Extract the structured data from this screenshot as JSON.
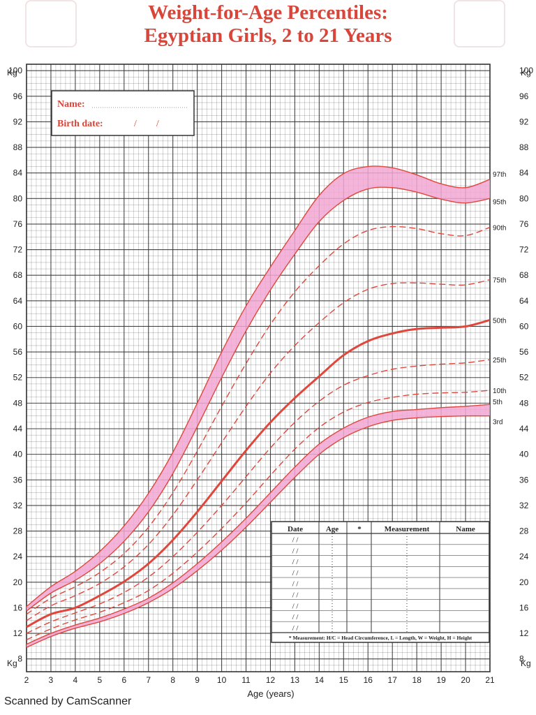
{
  "title_line1": "Weight-for-Age Percentiles:",
  "title_line2": "Egyptian Girls, 2 to 21 Years",
  "scan_note": "Scanned by CamScanner",
  "form": {
    "name_label": "Name:",
    "birth_label": "Birth date:",
    "birth_slashes": "/        /"
  },
  "record_table": {
    "headers": [
      "Date",
      "Age",
      "*",
      "Measurement",
      "Name"
    ],
    "date_mark": "/   /",
    "footnote": "* Measurement: H/C = Head Circumference, L = Length, W = Weight, H = Height"
  },
  "colors": {
    "curve": "#e0473c",
    "band": "#f2a7d4",
    "grid": "#333333",
    "text": "#222222"
  },
  "chart_data": {
    "type": "line",
    "title": "Weight-for-Age Percentiles: Egyptian Girls, 2 to 21 Years",
    "xlabel": "Age (years)",
    "ylabel": "Kg",
    "xlim": [
      2,
      21
    ],
    "ylim": [
      6,
      101
    ],
    "x_ticks": [
      2,
      3,
      4,
      5,
      6,
      7,
      8,
      9,
      10,
      11,
      12,
      13,
      14,
      15,
      16,
      17,
      18,
      19,
      20,
      21
    ],
    "y_ticks": [
      8,
      12,
      16,
      20,
      24,
      28,
      32,
      36,
      40,
      44,
      48,
      52,
      56,
      60,
      64,
      68,
      72,
      76,
      80,
      84,
      88,
      92,
      96,
      100
    ],
    "grid": true,
    "shaded_bands": [
      [
        "3rd",
        "5th"
      ],
      [
        "95th",
        "97th"
      ]
    ],
    "x": [
      2,
      3,
      4,
      5,
      6,
      7,
      8,
      9,
      10,
      11,
      12,
      13,
      14,
      15,
      16,
      17,
      18,
      19,
      20,
      21
    ],
    "series": [
      {
        "name": "3rd",
        "style": "solid",
        "values": [
          9.8,
          11.5,
          12.8,
          13.8,
          15.1,
          16.8,
          19.0,
          21.8,
          25.0,
          28.6,
          32.5,
          36.4,
          40.0,
          42.6,
          44.3,
          45.3,
          45.7,
          45.9,
          46.0,
          46.0
        ]
      },
      {
        "name": "5th",
        "style": "solid",
        "values": [
          10.3,
          12.0,
          13.3,
          14.4,
          15.8,
          17.5,
          19.9,
          22.9,
          26.3,
          30.0,
          34.0,
          38.0,
          41.6,
          44.1,
          45.8,
          46.7,
          47.0,
          47.3,
          47.5,
          47.8
        ]
      },
      {
        "name": "10th",
        "style": "dashed",
        "values": [
          11.0,
          12.7,
          14.1,
          15.3,
          16.8,
          18.7,
          21.4,
          24.7,
          28.4,
          32.4,
          36.7,
          40.8,
          44.2,
          46.6,
          48.1,
          48.9,
          49.4,
          49.6,
          49.7,
          50.0
        ]
      },
      {
        "name": "25th",
        "style": "dashed",
        "values": [
          12.0,
          13.8,
          15.2,
          16.6,
          18.4,
          20.8,
          24.0,
          27.8,
          32.0,
          36.5,
          41.0,
          45.0,
          48.3,
          50.8,
          52.3,
          53.3,
          53.8,
          54.1,
          54.3,
          54.8
        ]
      },
      {
        "name": "50th",
        "style": "solid",
        "values": [
          13.0,
          15.0,
          16.0,
          17.9,
          20.1,
          22.9,
          26.6,
          31.0,
          35.8,
          40.6,
          45.0,
          48.8,
          52.2,
          55.5,
          57.7,
          58.9,
          59.6,
          59.8,
          60.0,
          61.0
        ]
      },
      {
        "name": "75th",
        "style": "dashed",
        "values": [
          14.0,
          16.3,
          17.9,
          19.8,
          22.4,
          25.9,
          30.5,
          36.0,
          41.8,
          47.5,
          52.7,
          57.0,
          60.6,
          63.7,
          65.8,
          66.7,
          66.8,
          66.6,
          66.5,
          67.3
        ]
      },
      {
        "name": "90th",
        "style": "dashed",
        "values": [
          15.0,
          17.5,
          19.3,
          21.5,
          24.5,
          28.6,
          34.0,
          40.5,
          47.5,
          54.2,
          60.3,
          65.4,
          69.5,
          72.9,
          75.0,
          75.6,
          75.3,
          74.5,
          74.2,
          75.5
        ]
      },
      {
        "name": "95th",
        "style": "solid",
        "values": [
          15.5,
          18.3,
          20.3,
          22.9,
          26.4,
          31.0,
          37.0,
          44.3,
          52.0,
          59.3,
          65.7,
          71.3,
          76.4,
          79.7,
          81.5,
          81.7,
          81.0,
          79.9,
          79.3,
          80.0
        ]
      },
      {
        "name": "97th",
        "style": "solid",
        "values": [
          16.2,
          19.3,
          21.7,
          24.8,
          28.8,
          33.9,
          40.3,
          48.0,
          56.0,
          63.2,
          69.3,
          75.0,
          80.5,
          83.9,
          85.0,
          84.8,
          83.7,
          82.3,
          81.7,
          83.0
        ]
      }
    ]
  }
}
